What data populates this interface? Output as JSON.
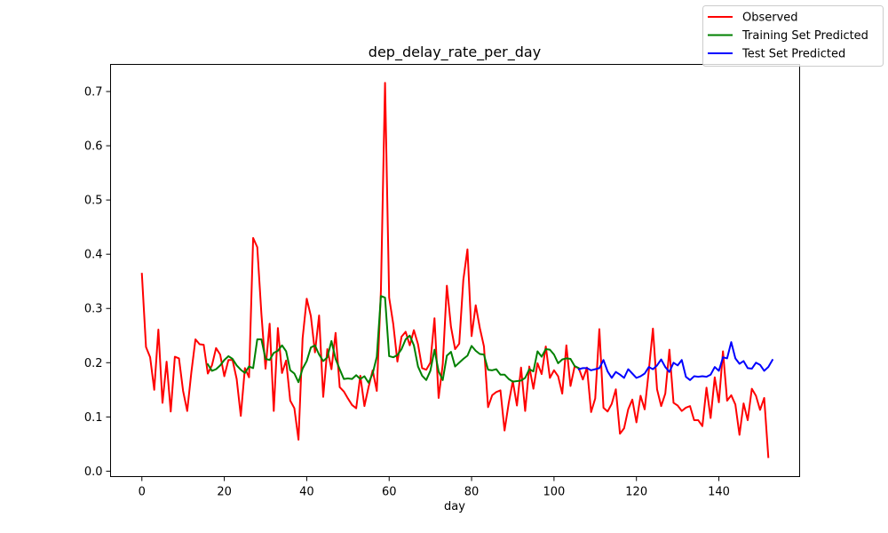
{
  "chart_data": {
    "type": "line",
    "title": "dep_delay_rate_per_day",
    "xlabel": "day",
    "ylabel": "",
    "xlim": [
      -7.6,
      159.6
    ],
    "ylim": [
      -0.01,
      0.75
    ],
    "xticks": [
      0,
      20,
      40,
      60,
      80,
      100,
      120,
      140
    ],
    "yticks": [
      0.0,
      0.1,
      0.2,
      0.3,
      0.4,
      0.5,
      0.6,
      0.7
    ],
    "xtick_labels": [
      "0",
      "20",
      "40",
      "60",
      "80",
      "100",
      "120",
      "140"
    ],
    "ytick_labels": [
      "0.0",
      "0.1",
      "0.2",
      "0.3",
      "0.4",
      "0.5",
      "0.6",
      "0.7"
    ],
    "grid": false,
    "legend_position": "top-right",
    "series": [
      {
        "name": "Observed",
        "color": "#ff0000",
        "x_start": 0,
        "values": [
          0.364,
          0.229,
          0.21,
          0.15,
          0.261,
          0.126,
          0.202,
          0.11,
          0.211,
          0.208,
          0.148,
          0.111,
          0.182,
          0.243,
          0.234,
          0.233,
          0.18,
          0.195,
          0.227,
          0.215,
          0.175,
          0.205,
          0.205,
          0.17,
          0.102,
          0.19,
          0.173,
          0.43,
          0.413,
          0.29,
          0.189,
          0.272,
          0.111,
          0.264,
          0.181,
          0.204,
          0.13,
          0.116,
          0.058,
          0.245,
          0.318,
          0.286,
          0.219,
          0.287,
          0.137,
          0.225,
          0.188,
          0.255,
          0.155,
          0.147,
          0.134,
          0.122,
          0.116,
          0.176,
          0.12,
          0.155,
          0.186,
          0.148,
          0.333,
          0.716,
          0.32,
          0.271,
          0.202,
          0.248,
          0.257,
          0.232,
          0.26,
          0.234,
          0.19,
          0.187,
          0.2,
          0.282,
          0.135,
          0.197,
          0.342,
          0.266,
          0.225,
          0.235,
          0.353,
          0.409,
          0.249,
          0.306,
          0.264,
          0.23,
          0.118,
          0.14,
          0.146,
          0.149,
          0.075,
          0.125,
          0.166,
          0.121,
          0.191,
          0.111,
          0.193,
          0.152,
          0.199,
          0.179,
          0.23,
          0.172,
          0.186,
          0.175,
          0.143,
          0.232,
          0.157,
          0.193,
          0.19,
          0.169,
          0.191,
          0.109,
          0.134,
          0.262,
          0.117,
          0.11,
          0.124,
          0.151,
          0.069,
          0.079,
          0.114,
          0.132,
          0.09,
          0.139,
          0.114,
          0.185,
          0.263,
          0.151,
          0.12,
          0.143,
          0.224,
          0.126,
          0.121,
          0.111,
          0.117,
          0.12,
          0.094,
          0.094,
          0.083,
          0.154,
          0.098,
          0.173,
          0.127,
          0.221,
          0.13,
          0.14,
          0.123,
          0.067,
          0.125,
          0.094,
          0.152,
          0.139,
          0.113,
          0.135,
          0.026
        ]
      },
      {
        "name": "Training Set Predicted",
        "color": "#008000",
        "x_start": 16,
        "values": [
          0.197,
          0.185,
          0.188,
          0.195,
          0.205,
          0.212,
          0.207,
          0.195,
          0.187,
          0.181,
          0.193,
          0.19,
          0.243,
          0.243,
          0.207,
          0.205,
          0.218,
          0.222,
          0.232,
          0.221,
          0.186,
          0.18,
          0.164,
          0.189,
          0.203,
          0.228,
          0.232,
          0.215,
          0.203,
          0.21,
          0.24,
          0.207,
          0.188,
          0.17,
          0.171,
          0.17,
          0.177,
          0.17,
          0.175,
          0.163,
          0.18,
          0.211,
          0.323,
          0.32,
          0.212,
          0.21,
          0.214,
          0.225,
          0.243,
          0.25,
          0.232,
          0.193,
          0.176,
          0.168,
          0.185,
          0.224,
          0.184,
          0.168,
          0.213,
          0.22,
          0.193,
          0.2,
          0.207,
          0.213,
          0.231,
          0.222,
          0.216,
          0.215,
          0.187,
          0.186,
          0.188,
          0.178,
          0.178,
          0.17,
          0.165,
          0.166,
          0.167,
          0.172,
          0.188,
          0.184,
          0.221,
          0.211,
          0.225,
          0.224,
          0.215,
          0.199,
          0.206,
          0.208,
          0.207,
          0.194,
          0.19
        ]
      },
      {
        "name": "Test Set Predicted",
        "color": "#0000ff",
        "x_start": 106,
        "values": [
          0.188,
          0.19,
          0.19,
          0.186,
          0.188,
          0.19,
          0.205,
          0.184,
          0.172,
          0.183,
          0.178,
          0.172,
          0.188,
          0.18,
          0.172,
          0.175,
          0.18,
          0.192,
          0.188,
          0.195,
          0.206,
          0.192,
          0.183,
          0.2,
          0.195,
          0.205,
          0.174,
          0.168,
          0.175,
          0.174,
          0.175,
          0.174,
          0.178,
          0.192,
          0.185,
          0.21,
          0.208,
          0.238,
          0.208,
          0.198,
          0.203,
          0.19,
          0.189,
          0.2,
          0.196,
          0.185,
          0.192,
          0.205
        ]
      }
    ]
  }
}
